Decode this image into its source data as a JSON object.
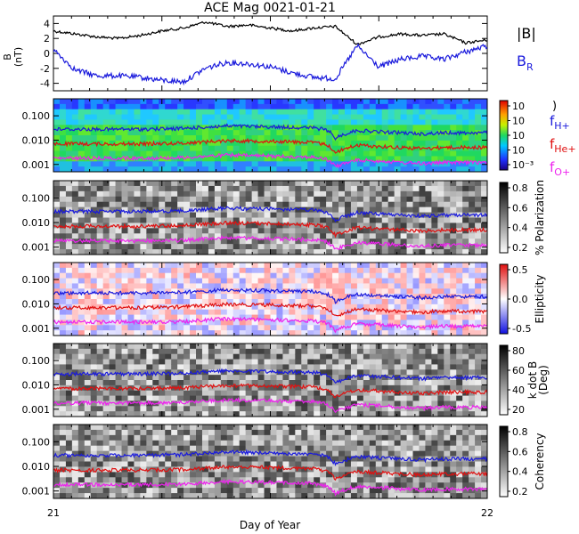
{
  "chart_data": {
    "type": "line",
    "title": "ACE Mag 0021-01-21",
    "xlabel": "Day of Year",
    "xlim": [
      21,
      22
    ],
    "x_ticks": [
      "21",
      "22"
    ],
    "panels": [
      {
        "id": "mag",
        "ylabel_lines": [
          "B",
          "(nT)"
        ],
        "ylim": [
          -5,
          5
        ],
        "y_ticks": [
          "-4",
          "-2",
          "0",
          "2",
          "4"
        ],
        "legend": [
          "|B|",
          "B_R"
        ],
        "series": [
          {
            "name": "|B|",
            "color": "#000000",
            "x": [
              21.0,
              21.05,
              21.1,
              21.15,
              21.2,
              21.25,
              21.3,
              21.35,
              21.4,
              21.45,
              21.5,
              21.55,
              21.6,
              21.65,
              21.7,
              21.75,
              21.8,
              21.85,
              21.9,
              21.95,
              22.0
            ],
            "values": [
              3.0,
              2.6,
              2.2,
              2.0,
              2.4,
              3.0,
              3.4,
              4.2,
              3.6,
              3.8,
              3.4,
              3.0,
              3.4,
              3.6,
              1.2,
              2.2,
              2.6,
              2.4,
              2.6,
              1.4,
              1.8
            ]
          },
          {
            "name": "B_R",
            "color": "#1a1adc",
            "x": [
              21.0,
              21.05,
              21.1,
              21.15,
              21.2,
              21.25,
              21.3,
              21.35,
              21.4,
              21.45,
              21.5,
              21.55,
              21.6,
              21.65,
              21.7,
              21.75,
              21.8,
              21.85,
              21.9,
              21.95,
              22.0
            ],
            "values": [
              0.5,
              -2.2,
              -3.0,
              -3.0,
              -3.2,
              -3.6,
              -3.8,
              -2.0,
              -1.2,
              -1.4,
              -1.8,
              -2.6,
              -3.2,
              -3.4,
              1.0,
              -1.8,
              -0.8,
              -0.4,
              -0.8,
              0.2,
              1.0
            ]
          }
        ]
      },
      {
        "id": "spectrum",
        "ylim_log": [
          0.0005,
          0.5
        ],
        "y_ticks": [
          "0.001",
          "0.010",
          "0.100"
        ],
        "colorbar": {
          "scale": "rainbow",
          "labels": [
            "10⁻³",
            "10",
            "10",
            "10",
            "10"
          ]
        },
        "legend": [
          "fH+",
          "fHe+",
          "fO+"
        ],
        "series": [
          {
            "name": "fH+",
            "color": "#1a1adc",
            "x": [
              21.0,
              21.1,
              21.2,
              21.3,
              21.4,
              21.5,
              21.6,
              21.63,
              21.65,
              21.7,
              21.75,
              21.8,
              21.85,
              21.9,
              21.95,
              22.0
            ],
            "values": [
              0.028,
              0.028,
              0.028,
              0.03,
              0.038,
              0.035,
              0.032,
              0.026,
              0.012,
              0.025,
              0.022,
              0.02,
              0.018,
              0.02,
              0.02,
              0.02
            ]
          },
          {
            "name": "fHe+",
            "color": "#e01010",
            "x": [
              21.0,
              21.1,
              21.2,
              21.3,
              21.4,
              21.5,
              21.6,
              21.63,
              21.65,
              21.7,
              21.75,
              21.8,
              21.85,
              21.9,
              21.95,
              22.0
            ],
            "values": [
              0.007,
              0.007,
              0.007,
              0.0075,
              0.0095,
              0.009,
              0.008,
              0.0065,
              0.003,
              0.0062,
              0.0055,
              0.005,
              0.0045,
              0.005,
              0.005,
              0.005
            ]
          },
          {
            "name": "fO+",
            "color": "#ee22ee",
            "x": [
              21.0,
              21.1,
              21.2,
              21.3,
              21.4,
              21.5,
              21.6,
              21.63,
              21.65,
              21.7,
              21.75,
              21.8,
              21.85,
              21.9,
              21.95,
              22.0
            ],
            "values": [
              0.0018,
              0.0018,
              0.0018,
              0.0019,
              0.0024,
              0.0022,
              0.002,
              0.0016,
              0.0008,
              0.0015,
              0.0014,
              0.0012,
              0.0011,
              0.0012,
              0.0012,
              0.0012
            ]
          }
        ]
      },
      {
        "id": "polarization",
        "ylim_log": [
          0.0005,
          0.5
        ],
        "y_ticks": [
          "0.001",
          "0.010",
          "0.100"
        ],
        "colorbar": {
          "scale": "gray",
          "label": "% Polarization",
          "labels": [
            "0.2",
            "0.4",
            "0.6",
            "0.8"
          ]
        }
      },
      {
        "id": "ellipticity",
        "ylim_log": [
          0.0005,
          0.5
        ],
        "y_ticks": [
          "0.001",
          "0.010",
          "0.100"
        ],
        "colorbar": {
          "scale": "bwr",
          "label": "Ellipticity",
          "labels": [
            "-0.5",
            "0.0",
            "0.5"
          ]
        }
      },
      {
        "id": "kdotb",
        "ylim_log": [
          0.0005,
          0.5
        ],
        "y_ticks": [
          "0.001",
          "0.010",
          "0.100"
        ],
        "colorbar": {
          "scale": "gray",
          "label_lines": [
            "k dot B",
            "(Deg)"
          ],
          "labels": [
            "20",
            "40",
            "60",
            "80"
          ]
        }
      },
      {
        "id": "coherency",
        "ylim_log": [
          0.0005,
          0.5
        ],
        "y_ticks": [
          "0.001",
          "0.010",
          "0.100"
        ],
        "colorbar": {
          "scale": "gray",
          "label": "Coherency",
          "labels": [
            "0.2",
            "0.4",
            "0.6",
            "0.8"
          ]
        }
      }
    ]
  }
}
